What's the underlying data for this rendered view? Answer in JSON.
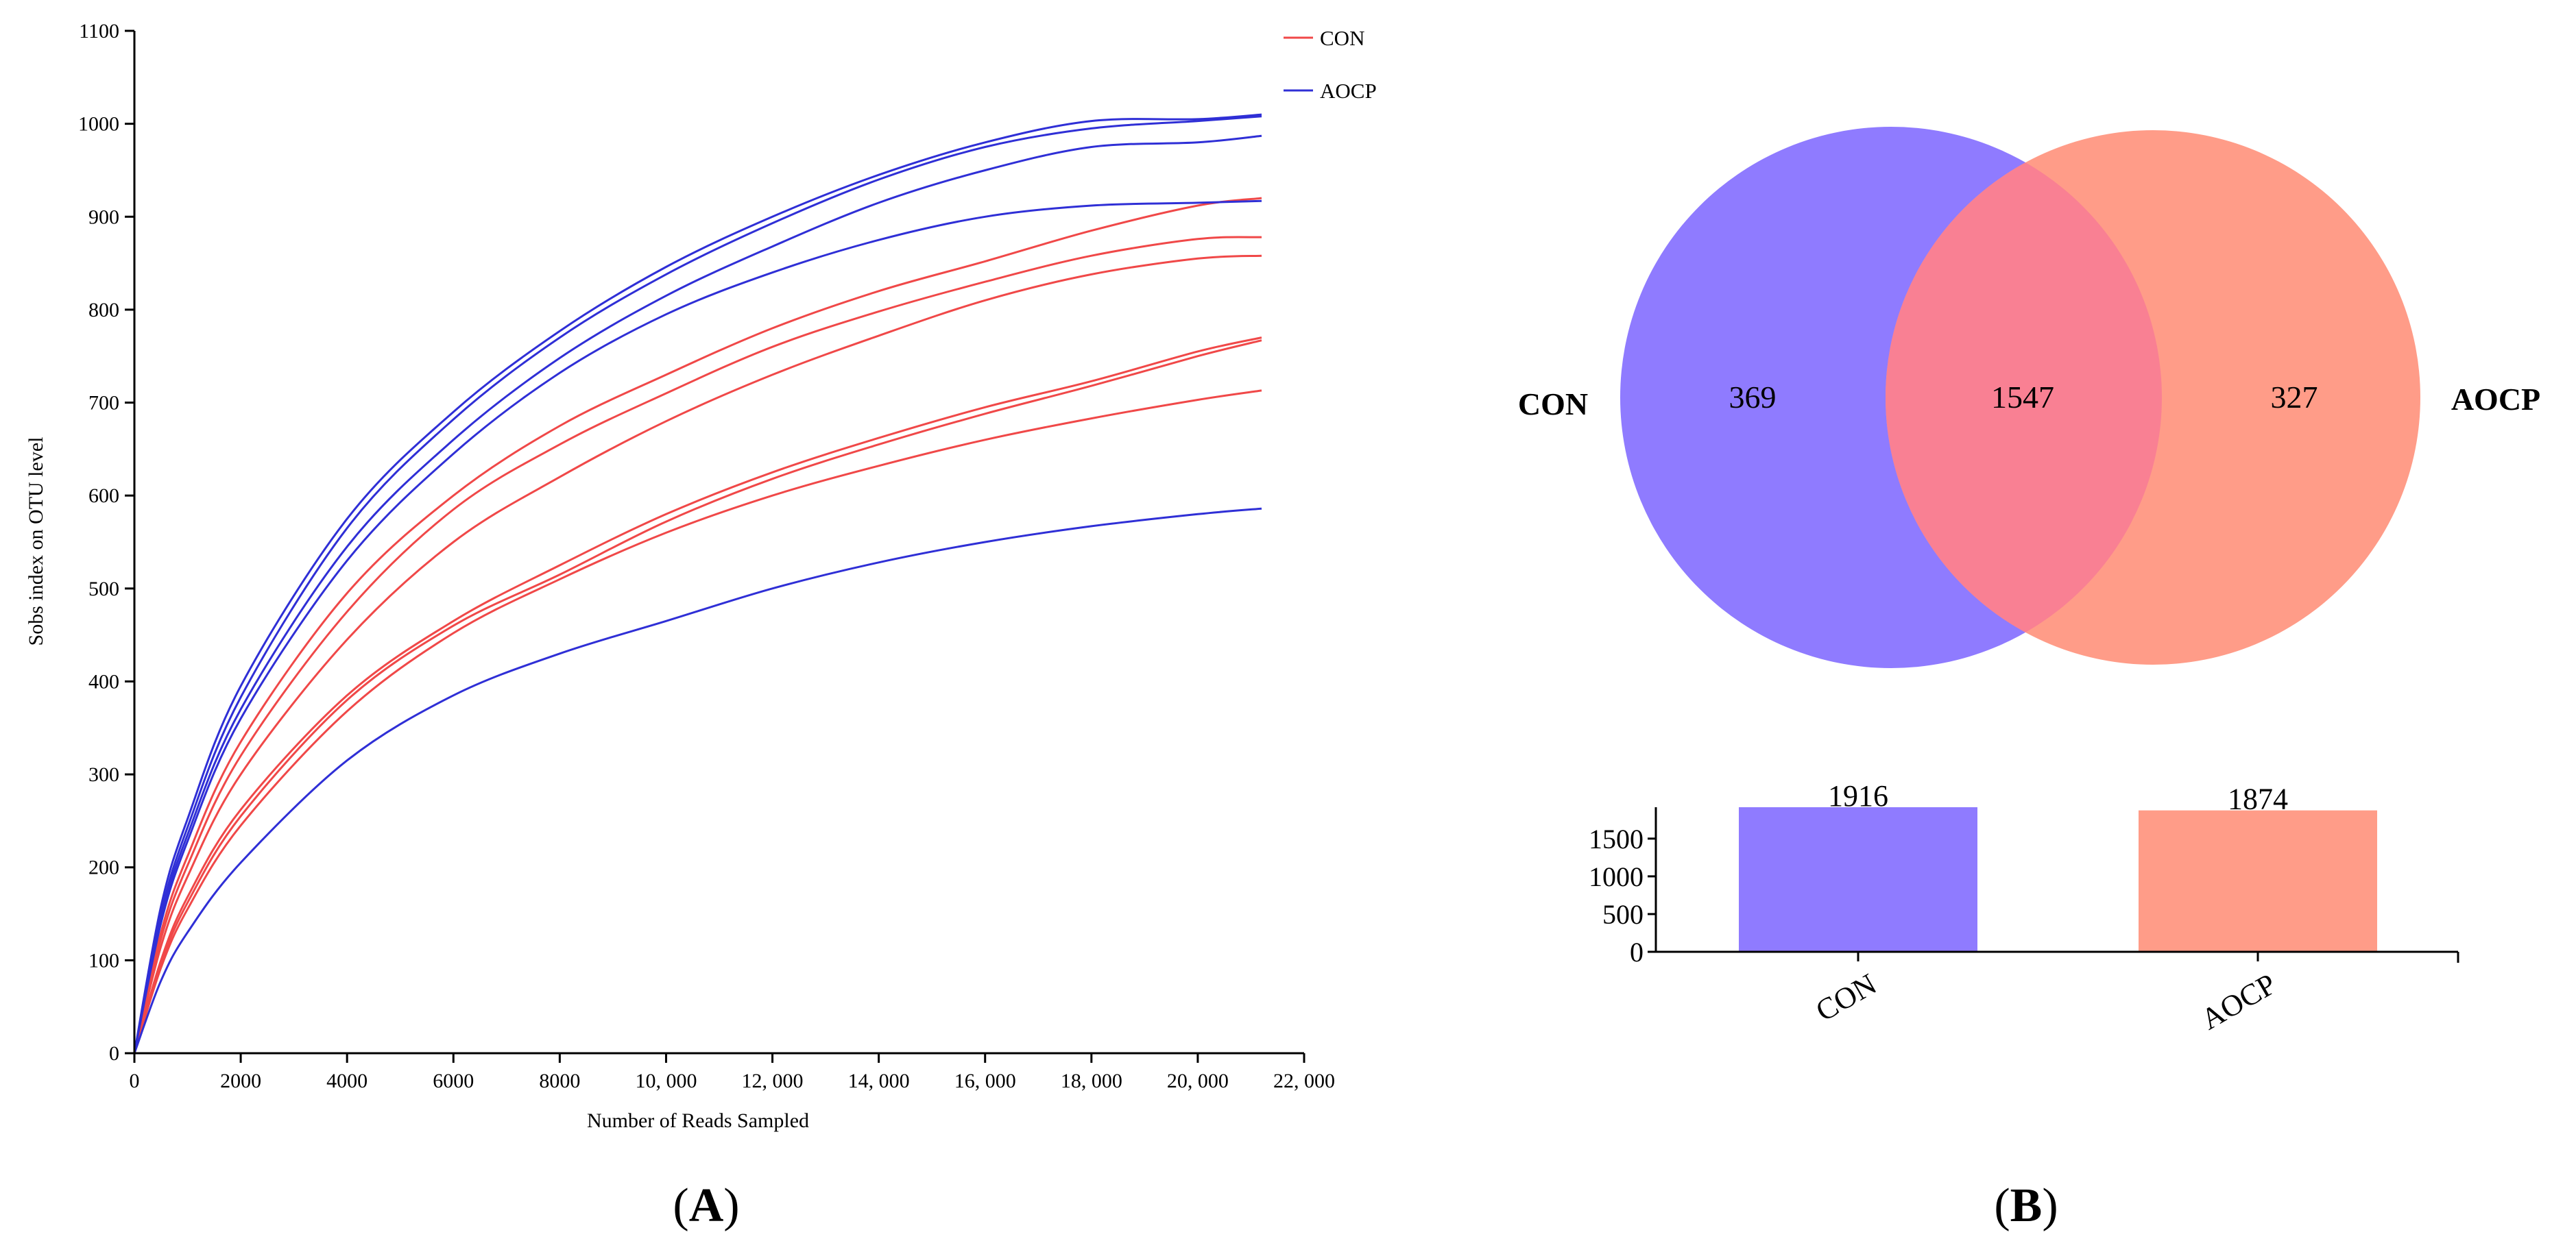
{
  "figure": {
    "panel_a_label": "A",
    "panel_b_label": "B"
  },
  "colors": {
    "con": "#f04848",
    "aocp": "#2f2fd6",
    "venn_con": "#8f7bff",
    "venn_aocp": "#ff9c88",
    "venn_overlap": "#f98093",
    "axis": "#000000"
  },
  "chart_data": [
    {
      "id": "rarefaction",
      "type": "line",
      "title": "",
      "xlabel": "Number of Reads Sampled",
      "ylabel": "Sobs index on OTU level",
      "xlim": [
        0,
        22000
      ],
      "ylim": [
        0,
        1100
      ],
      "x_ticks": [
        0,
        2000,
        4000,
        6000,
        8000,
        10000,
        12000,
        14000,
        16000,
        18000,
        20000,
        22000
      ],
      "x_tick_labels": [
        "0",
        "2000",
        "4000",
        "6000",
        "8000",
        "10, 000",
        "12, 000",
        "14, 000",
        "16, 000",
        "18, 000",
        "20, 000",
        "22, 000"
      ],
      "y_ticks": [
        0,
        100,
        200,
        300,
        400,
        500,
        600,
        700,
        800,
        900,
        1000,
        1100
      ],
      "y_tick_labels": [
        "0",
        "100",
        "200",
        "300",
        "400",
        "500",
        "600",
        "700",
        "800",
        "900",
        "1000",
        "1100"
      ],
      "legend": {
        "position": "top-right",
        "entries": [
          "CON",
          "AOCP"
        ]
      },
      "x": [
        0,
        500,
        1000,
        2000,
        4000,
        6000,
        8000,
        10000,
        12000,
        14000,
        16000,
        18000,
        20000,
        21200
      ],
      "series": [
        {
          "name": "AOCP",
          "group": "AOCP",
          "values": [
            0,
            158,
            252,
            395,
            575,
            690,
            777,
            846,
            900,
            945,
            980,
            1003,
            1005,
            1010
          ]
        },
        {
          "name": "AOCP",
          "group": "AOCP",
          "values": [
            0,
            150,
            243,
            383,
            565,
            682,
            770,
            838,
            893,
            940,
            975,
            995,
            1003,
            1008
          ]
        },
        {
          "name": "AOCP",
          "group": "AOCP",
          "values": [
            0,
            145,
            235,
            370,
            545,
            660,
            748,
            815,
            868,
            915,
            950,
            975,
            980,
            987
          ]
        },
        {
          "name": "AOCP",
          "group": "AOCP",
          "values": [
            0,
            140,
            228,
            360,
            530,
            645,
            732,
            795,
            840,
            875,
            900,
            912,
            915,
            917
          ]
        },
        {
          "name": "AOCP",
          "group": "AOCP",
          "values": [
            0,
            78,
            130,
            205,
            315,
            385,
            430,
            465,
            500,
            528,
            550,
            567,
            580,
            586
          ]
        },
        {
          "name": "CON",
          "group": "CON",
          "values": [
            0,
            130,
            212,
            335,
            495,
            600,
            675,
            730,
            780,
            820,
            852,
            885,
            912,
            920
          ]
        },
        {
          "name": "CON",
          "group": "CON",
          "values": [
            0,
            123,
            202,
            320,
            475,
            585,
            655,
            710,
            760,
            798,
            830,
            858,
            876,
            878
          ]
        },
        {
          "name": "CON",
          "group": "CON",
          "values": [
            0,
            115,
            190,
            300,
            445,
            550,
            620,
            680,
            730,
            772,
            810,
            838,
            855,
            858
          ]
        },
        {
          "name": "CON",
          "group": "CON",
          "values": [
            0,
            100,
            168,
            262,
            385,
            465,
            525,
            580,
            625,
            662,
            695,
            723,
            755,
            770
          ]
        },
        {
          "name": "CON",
          "group": "CON",
          "values": [
            0,
            96,
            162,
            255,
            380,
            460,
            515,
            572,
            618,
            655,
            688,
            718,
            750,
            767
          ]
        },
        {
          "name": "CON",
          "group": "CON",
          "values": [
            0,
            92,
            155,
            245,
            368,
            452,
            510,
            560,
            600,
            632,
            660,
            683,
            703,
            713
          ]
        }
      ]
    },
    {
      "id": "venn",
      "type": "venn",
      "sets": [
        {
          "name": "CON",
          "label": "CON",
          "unique": 369
        },
        {
          "name": "AOCP",
          "label": "AOCP",
          "unique": 327
        }
      ],
      "overlap": 1547
    },
    {
      "id": "totals",
      "type": "bar",
      "categories": [
        "CON",
        "AOCP"
      ],
      "values": [
        1916,
        1874
      ],
      "value_labels": [
        "1916",
        "1874"
      ],
      "ylim": [
        0,
        1916
      ],
      "y_ticks": [
        0,
        500,
        1000,
        1500
      ],
      "y_tick_labels": [
        "0",
        "500",
        "1000",
        "1500"
      ]
    }
  ]
}
